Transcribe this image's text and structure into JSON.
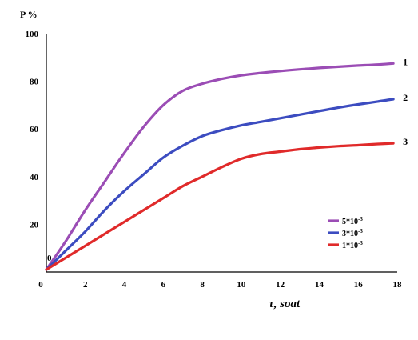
{
  "chart_data": {
    "type": "line",
    "ylabel": "P %",
    "xlabel": "τ, soat",
    "xlim": [
      0,
      18
    ],
    "ylim": [
      0,
      100
    ],
    "x_ticks": [
      "0",
      "2",
      "4",
      "6",
      "8",
      "10",
      "12",
      "14",
      "16",
      "18"
    ],
    "y_ticks": [
      "20",
      "40",
      "60",
      "80",
      "100"
    ],
    "origin_label": "0",
    "grid": false,
    "legend_position": "bottom-right",
    "series": [
      {
        "curve_label": "1",
        "name": "5*10-3",
        "name_base": "5*10",
        "name_exp": "-3",
        "color": "#9b4db5",
        "x": [
          0,
          1,
          2,
          3,
          4,
          5,
          6,
          7,
          8,
          9,
          10,
          11,
          12,
          13,
          14,
          15,
          16,
          17,
          17.8
        ],
        "y": [
          1,
          13,
          26,
          38,
          50,
          61,
          70,
          76,
          79,
          81,
          82.5,
          83.5,
          84.3,
          85,
          85.6,
          86.1,
          86.6,
          87,
          87.5
        ]
      },
      {
        "curve_label": "2",
        "name": "3*10-3",
        "name_base": "3*10",
        "name_exp": "-3",
        "color": "#3c4cc0",
        "x": [
          0,
          1,
          2,
          3,
          4,
          5,
          6,
          7,
          8,
          9,
          10,
          11,
          12,
          13,
          14,
          15,
          16,
          17,
          17.8
        ],
        "y": [
          1,
          9,
          17,
          26,
          34,
          41,
          48,
          53,
          57,
          59.5,
          61.5,
          63,
          64.5,
          66,
          67.5,
          69,
          70.3,
          71.5,
          72.5
        ]
      },
      {
        "curve_label": "3",
        "name": "1*10-3",
        "name_base": "1*10",
        "name_exp": "-3",
        "color": "#e02a2a",
        "x": [
          0,
          1,
          2,
          3,
          4,
          5,
          6,
          7,
          8,
          9,
          10,
          11,
          12,
          13,
          14,
          15,
          16,
          17,
          17.8
        ],
        "y": [
          1,
          6,
          11,
          16,
          21,
          26,
          31,
          36,
          40,
          44,
          47.5,
          49.5,
          50.5,
          51.5,
          52.2,
          52.8,
          53.2,
          53.7,
          54
        ]
      }
    ]
  }
}
